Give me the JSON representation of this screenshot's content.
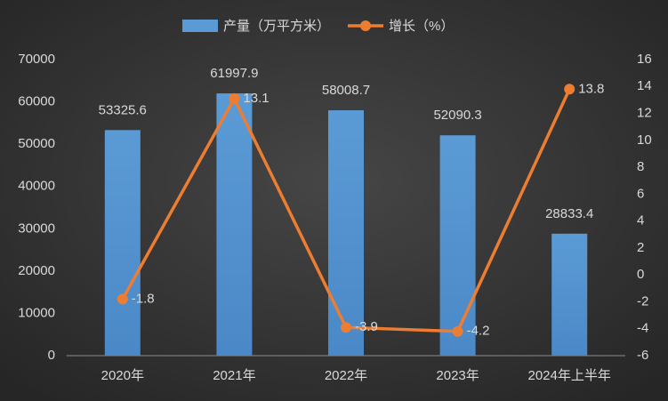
{
  "chart_data": {
    "type": "bar",
    "categories": [
      "2020年",
      "2021年",
      "2022年",
      "2023年",
      "2024年上半年"
    ],
    "series": [
      {
        "name": "产量（万平方米）",
        "type": "bar",
        "color": "#5b9bd5",
        "values": [
          53325.6,
          61997.9,
          58008.7,
          52090.3,
          28833.4
        ]
      },
      {
        "name": "增长（%）",
        "type": "line",
        "axis": "y2",
        "color": "#ed7d31",
        "values": [
          -1.8,
          13.1,
          -3.9,
          -4.2,
          13.8
        ]
      }
    ],
    "ylim": [
      0,
      70000
    ],
    "yticks": [
      0,
      10000,
      20000,
      30000,
      40000,
      50000,
      60000,
      70000
    ],
    "y2lim": [
      -6,
      16
    ],
    "y2ticks": [
      -6,
      -4,
      -2,
      0,
      2,
      4,
      6,
      8,
      10,
      12,
      14,
      16
    ],
    "legend": "top"
  }
}
